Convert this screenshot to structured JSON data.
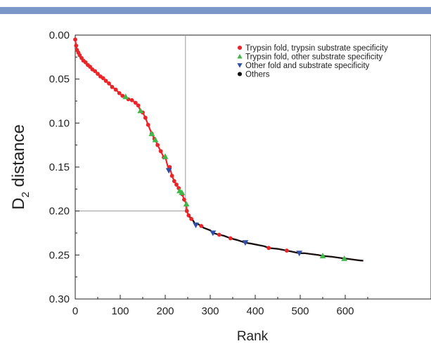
{
  "chart_data": {
    "type": "scatter",
    "title": "",
    "xlabel": "Rank",
    "ylabel": "D",
    "ylabel_subscript": "2",
    "ylabel_suffix": " distance",
    "xlim": [
      0,
      640
    ],
    "ylim": [
      0.0,
      0.3
    ],
    "y_inverted": true,
    "x_ticks": [
      "0",
      "100",
      "200",
      "300",
      "400",
      "500",
      "600"
    ],
    "x_tick_values": [
      0,
      100,
      200,
      300,
      400,
      500,
      600
    ],
    "y_ticks": [
      "0.00",
      "0.05",
      "0.10",
      "0.15",
      "0.20",
      "0.25",
      "0.30"
    ],
    "y_tick_values": [
      0.0,
      0.05,
      0.1,
      0.15,
      0.2,
      0.25,
      0.3
    ],
    "reference_lines": {
      "x": 245,
      "y": 0.2
    },
    "legend_position": "top-right",
    "series": [
      {
        "name": "Trypsin fold, trypsin substrate specificity",
        "color": "#e8262a",
        "marker": "circle",
        "points": [
          [
            0,
            0.005
          ],
          [
            2,
            0.012
          ],
          [
            4,
            0.017
          ],
          [
            7,
            0.02
          ],
          [
            10,
            0.023
          ],
          [
            14,
            0.026
          ],
          [
            18,
            0.029
          ],
          [
            23,
            0.031
          ],
          [
            28,
            0.034
          ],
          [
            33,
            0.036
          ],
          [
            38,
            0.039
          ],
          [
            44,
            0.041
          ],
          [
            50,
            0.044
          ],
          [
            56,
            0.047
          ],
          [
            62,
            0.049
          ],
          [
            68,
            0.052
          ],
          [
            75,
            0.055
          ],
          [
            82,
            0.059
          ],
          [
            90,
            0.062
          ],
          [
            98,
            0.066
          ],
          [
            105,
            0.069
          ],
          [
            118,
            0.073
          ],
          [
            126,
            0.074
          ],
          [
            134,
            0.077
          ],
          [
            140,
            0.08
          ],
          [
            150,
            0.088
          ],
          [
            156,
            0.094
          ],
          [
            162,
            0.102
          ],
          [
            170,
            0.112
          ],
          [
            176,
            0.118
          ],
          [
            183,
            0.125
          ],
          [
            190,
            0.132
          ],
          [
            197,
            0.139
          ],
          [
            210,
            0.15
          ],
          [
            215,
            0.16
          ],
          [
            220,
            0.166
          ],
          [
            225,
            0.17
          ],
          [
            230,
            0.174
          ],
          [
            238,
            0.181
          ],
          [
            242,
            0.187
          ],
          [
            248,
            0.2
          ],
          [
            252,
            0.205
          ],
          [
            258,
            0.209
          ],
          [
            280,
            0.217
          ],
          [
            320,
            0.227
          ],
          [
            345,
            0.231
          ],
          [
            430,
            0.242
          ],
          [
            470,
            0.245
          ]
        ]
      },
      {
        "name": "Trypsin fold, other substrate specificity",
        "color": "#41b649",
        "marker": "triangle-up",
        "points": [
          [
            112,
            0.07
          ],
          [
            145,
            0.086
          ],
          [
            170,
            0.112
          ],
          [
            178,
            0.119
          ],
          [
            200,
            0.138
          ],
          [
            232,
            0.177
          ],
          [
            237,
            0.179
          ],
          [
            247,
            0.192
          ],
          [
            550,
            0.251
          ],
          [
            598,
            0.254
          ]
        ]
      },
      {
        "name": "Other fold and substrate specificity",
        "color": "#2f4fa6",
        "marker": "triangle-down",
        "points": [
          [
            208,
            0.154
          ],
          [
            268,
            0.216
          ],
          [
            306,
            0.225
          ],
          [
            378,
            0.236
          ],
          [
            498,
            0.248
          ]
        ]
      },
      {
        "name": "Others",
        "color": "#111111",
        "marker": "circle",
        "points": [
          [
            255,
            0.207
          ],
          [
            262,
            0.211
          ],
          [
            270,
            0.214
          ],
          [
            285,
            0.219
          ],
          [
            300,
            0.222
          ],
          [
            330,
            0.228
          ],
          [
            360,
            0.233
          ],
          [
            390,
            0.237
          ],
          [
            420,
            0.24
          ],
          [
            450,
            0.243
          ],
          [
            480,
            0.246
          ],
          [
            510,
            0.248
          ],
          [
            540,
            0.25
          ],
          [
            570,
            0.252
          ],
          [
            600,
            0.254
          ],
          [
            630,
            0.256
          ],
          [
            640,
            0.2565
          ]
        ]
      }
    ]
  }
}
